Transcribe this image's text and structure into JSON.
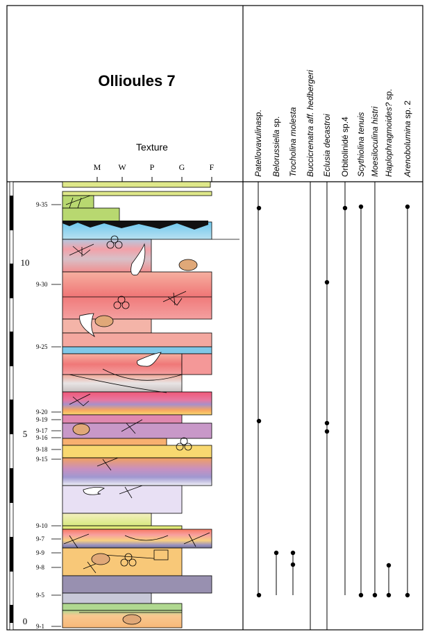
{
  "header": {
    "title": "Ollioules 7",
    "texture_label": "Texture",
    "texture_classes": [
      "M",
      "W",
      "P",
      "G",
      "F"
    ]
  },
  "species": [
    {
      "italic": "Patellovavulina",
      "plain": "sp."
    },
    {
      "italic": "Belorussiella",
      "plain": " sp."
    },
    {
      "italic": "Trocholina molesta"
    },
    {
      "italic": "Buccicrenatra aff. hedbergeri"
    },
    {
      "italic": "Eclusia decastroi"
    },
    {
      "plain": "Orbitolinidé sp.4"
    },
    {
      "italic": "Scythiolina tenuis"
    },
    {
      "italic": "Moesiloculina histri"
    },
    {
      "italic": "Haplophragmoides?",
      "plain": " sp."
    },
    {
      "italic": "Arenobolumina",
      "plain": " sp. 2"
    }
  ],
  "scale": [
    "10",
    "5",
    "0"
  ],
  "samples": [
    "9-35",
    "9-30",
    "9-25",
    "9-20",
    "9-19",
    "9-17",
    "9-16",
    "9-18",
    "9-15",
    "9-10",
    "9-7",
    "9-9",
    "9-8",
    "9-5",
    "9-1"
  ]
}
